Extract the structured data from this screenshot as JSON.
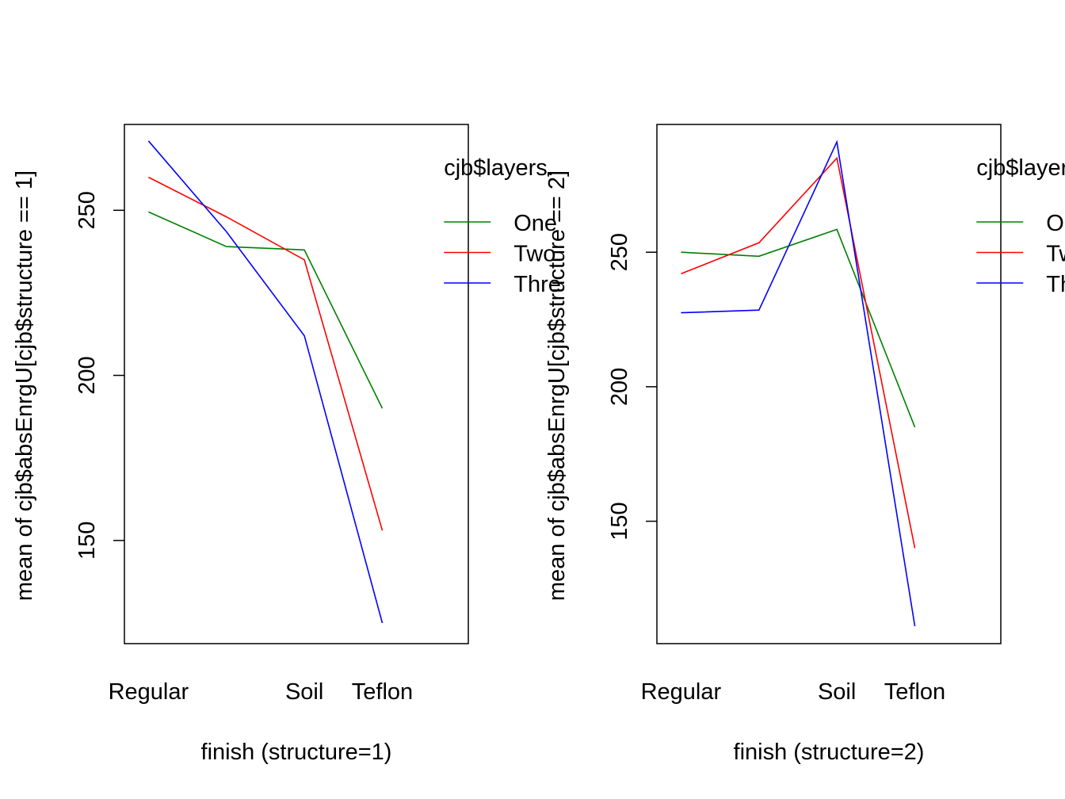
{
  "chart_data": [
    {
      "type": "line",
      "title": "",
      "xlabel": "finish (structure=1)",
      "ylabel": "mean of  cjb$absEnrgU[cjb$structure == 1]",
      "categories": [
        "Regular",
        "",
        "Soil",
        "Teflon"
      ],
      "x_tick_labels": [
        "Regular",
        "Soil",
        "Teflon"
      ],
      "y_ticks": [
        150,
        200,
        250
      ],
      "ylim": [
        118.75,
        276
      ],
      "legend_title": "cjb$layers.",
      "legend_position": "top-right",
      "grid": false,
      "series": [
        {
          "name": "One",
          "color": "#008000",
          "values": [
            249.5,
            239,
            238,
            190
          ]
        },
        {
          "name": "Two",
          "color": "#ff0000",
          "values": [
            260,
            248,
            235,
            153
          ]
        },
        {
          "name": "Thre",
          "color": "#0000ff",
          "values": [
            271,
            243.5,
            212,
            125
          ]
        }
      ]
    },
    {
      "type": "line",
      "title": "",
      "xlabel": "finish (structure=2)",
      "ylabel": "mean of  cjb$absEnrgU[cjb$structure == 2]",
      "categories": [
        "Regular",
        "",
        "Soil",
        "Teflon"
      ],
      "x_tick_labels": [
        "Regular",
        "Soil",
        "Teflon"
      ],
      "y_ticks": [
        150,
        200,
        250
      ],
      "ylim": [
        104.5,
        297.5
      ],
      "legend_title": "cjb$layers.",
      "legend_position": "top-right",
      "grid": false,
      "series": [
        {
          "name": "One",
          "color": "#008000",
          "values": [
            250,
            248.5,
            258.5,
            185
          ]
        },
        {
          "name": "Two",
          "color": "#ff0000",
          "values": [
            242,
            253.5,
            285,
            140
          ]
        },
        {
          "name": "Thre",
          "color": "#0000ff",
          "values": [
            227.5,
            228.5,
            291,
            111
          ]
        }
      ]
    }
  ]
}
